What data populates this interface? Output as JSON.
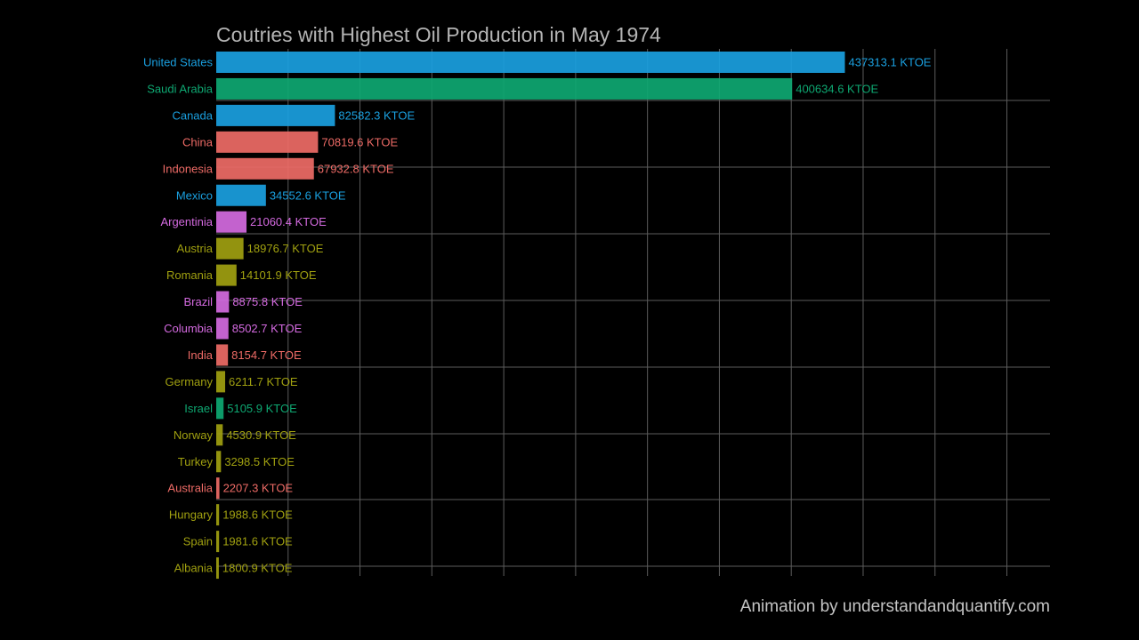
{
  "chart_data": {
    "type": "bar",
    "orientation": "horizontal",
    "title": "Coutries with Highest Oil Production in May 1974",
    "caption": "Animation by understandandquantify.com",
    "unit": "KTOE",
    "xlim": [
      0,
      580000
    ],
    "grid": true,
    "legend": "none",
    "bars": [
      {
        "country": "United States",
        "value": 437313.1,
        "label": "437313.1 KTOE",
        "color": "#1aa0e0"
      },
      {
        "country": "Saudi Arabia",
        "value": 400634.6,
        "label": "400634.6 KTOE",
        "color": "#0ea872"
      },
      {
        "country": "Canada",
        "value": 82582.3,
        "label": "82582.3 KTOE",
        "color": "#1aa0e0"
      },
      {
        "country": "China",
        "value": 70819.6,
        "label": "70819.6 KTOE",
        "color": "#ee6b66"
      },
      {
        "country": "Indonesia",
        "value": 67932.8,
        "label": "67932.8 KTOE",
        "color": "#ee6b66"
      },
      {
        "country": "Mexico",
        "value": 34552.6,
        "label": "34552.6 KTOE",
        "color": "#1aa0e0"
      },
      {
        "country": "Argentinia",
        "value": 21060.4,
        "label": "21060.4 KTOE",
        "color": "#d46ae0"
      },
      {
        "country": "Austria",
        "value": 18976.7,
        "label": "18976.7 KTOE",
        "color": "#a0a010"
      },
      {
        "country": "Romania",
        "value": 14101.9,
        "label": "14101.9 KTOE",
        "color": "#a0a010"
      },
      {
        "country": "Brazil",
        "value": 8875.8,
        "label": "8875.8 KTOE",
        "color": "#d46ae0"
      },
      {
        "country": "Columbia",
        "value": 8502.7,
        "label": "8502.7 KTOE",
        "color": "#d46ae0"
      },
      {
        "country": "India",
        "value": 8154.7,
        "label": "8154.7 KTOE",
        "color": "#ee6b66"
      },
      {
        "country": "Germany",
        "value": 6211.7,
        "label": "6211.7 KTOE",
        "color": "#a0a010"
      },
      {
        "country": "Israel",
        "value": 5105.9,
        "label": "5105.9 KTOE",
        "color": "#0ea872"
      },
      {
        "country": "Norway",
        "value": 4530.9,
        "label": "4530.9 KTOE",
        "color": "#a0a010"
      },
      {
        "country": "Turkey",
        "value": 3298.5,
        "label": "3298.5 KTOE",
        "color": "#a0a010"
      },
      {
        "country": "Australia",
        "value": 2207.3,
        "label": "2207.3 KTOE",
        "color": "#ee6b66"
      },
      {
        "country": "Hungary",
        "value": 1988.6,
        "label": "1988.6 KTOE",
        "color": "#a0a010"
      },
      {
        "country": "Spain",
        "value": 1981.6,
        "label": "1981.6 KTOE",
        "color": "#a0a010"
      },
      {
        "country": "Albania",
        "value": 1800.9,
        "label": "1800.9 KTOE",
        "color": "#a0a010"
      }
    ]
  }
}
